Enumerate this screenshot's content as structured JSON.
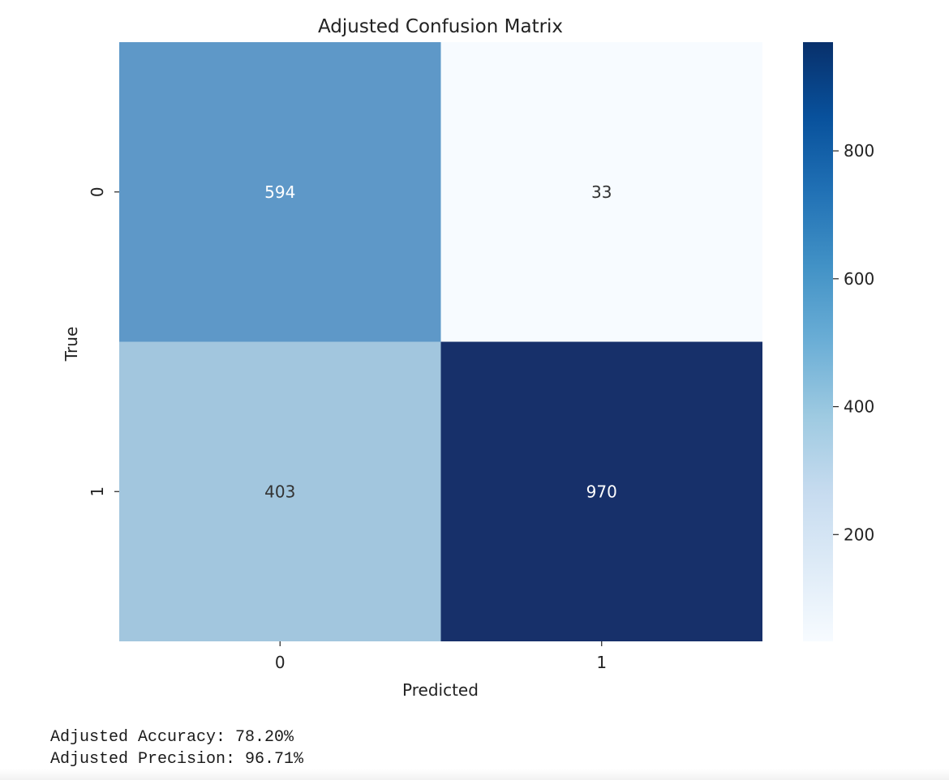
{
  "chart_data": {
    "type": "heatmap",
    "title": "Adjusted Confusion Matrix",
    "xlabel": "Predicted",
    "ylabel": "True",
    "x_categories": [
      "0",
      "1"
    ],
    "y_categories": [
      "0",
      "1"
    ],
    "values": [
      [
        594,
        33
      ],
      [
        403,
        970
      ]
    ],
    "colormap": "Blues",
    "color_range": [
      33,
      970
    ],
    "colorbar_ticks": [
      200,
      400,
      600,
      800
    ],
    "cell_colors": [
      [
        "#5e98c8",
        "#f7fbff"
      ],
      [
        "#a2c6de",
        "#17306a"
      ]
    ],
    "annotation_colors": [
      [
        "#ffffff",
        "#333333"
      ],
      [
        "#333333",
        "#ffffff"
      ]
    ]
  },
  "output": {
    "accuracy_line": "Adjusted Accuracy: 78.20%",
    "precision_line": "Adjusted Precision: 96.71%"
  }
}
